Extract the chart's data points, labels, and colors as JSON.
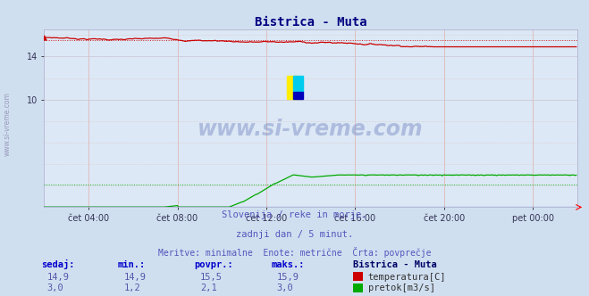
{
  "title": "Bistrica - Muta",
  "title_color": "#000080",
  "bg_color": "#d0dff0",
  "plot_bg_color": "#dce8f5",
  "grid_v_color": "#c8c8d8",
  "grid_h_color": "#ddc8c8",
  "x_tick_labels": [
    "čet 04:00",
    "čet 08:00",
    "čet 12:00",
    "čet 16:00",
    "čet 20:00",
    "pet 00:00"
  ],
  "x_tick_positions": [
    48,
    144,
    240,
    336,
    432,
    528
  ],
  "n_points": 576,
  "temp_min": 14.9,
  "temp_max": 15.9,
  "temp_avg": 15.5,
  "temp_color": "#cc0000",
  "flow_min": 1.2,
  "flow_max": 3.0,
  "flow_avg": 2.1,
  "flow_color": "#00aa00",
  "height_color": "#0000cc",
  "y_min": 0,
  "y_max": 16.5,
  "y_ticks": [
    10,
    14
  ],
  "watermark_text": "www.si-vreme.com",
  "caption_line1": "Slovenija / reke in morje.",
  "caption_line2": "zadnji dan / 5 minut.",
  "caption_line3": "Meritve: minimalne  Enote: metrične  Črta: povprečje",
  "caption_color": "#5555bb",
  "left_label": "www.si-vreme.com",
  "legend_title": "Bistrica - Muta",
  "table_headers": [
    "sedaj:",
    "min.:",
    "povpr.:",
    "maks.:"
  ],
  "table_row1": [
    "14,9",
    "14,9",
    "15,5",
    "15,9"
  ],
  "table_row2": [
    "3,0",
    "1,2",
    "2,1",
    "3,0"
  ],
  "table_label1": "temperatura[C]",
  "table_label2": "pretok[m3/s]",
  "table_header_color": "#0000cc",
  "table_value_color": "#5555aa",
  "table_label_color": "#333333",
  "legend_title_color": "#000066"
}
